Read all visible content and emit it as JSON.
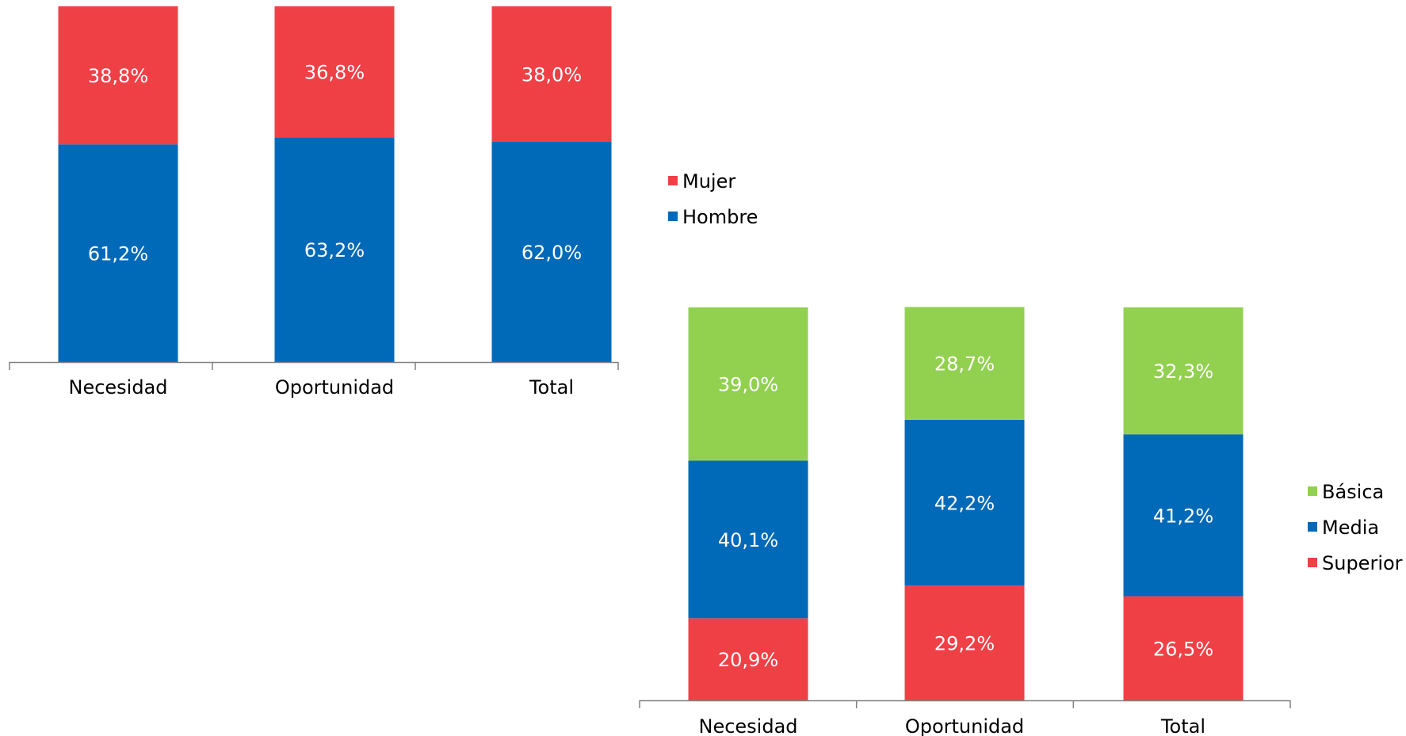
{
  "chart_data": [
    {
      "type": "bar",
      "stacked": true,
      "normalized": true,
      "categories": [
        "Necesidad",
        "Oportunidad",
        "Total"
      ],
      "series": [
        {
          "name": "Hombre",
          "values": [
            61.2,
            63.2,
            62.0
          ],
          "labels": [
            "61,2%",
            "63,2%",
            "62,0%"
          ],
          "color": "#0069B8"
        },
        {
          "name": "Mujer",
          "values": [
            38.8,
            36.8,
            38.0
          ],
          "labels": [
            "38,8%",
            "36,8%",
            "38,0%"
          ],
          "color": "#EF4046"
        }
      ],
      "legend_order": [
        "Mujer",
        "Hombre"
      ],
      "legend_placement": "right",
      "ylim": [
        0,
        100
      ],
      "grid": false
    },
    {
      "type": "bar",
      "stacked": true,
      "normalized": true,
      "categories": [
        "Necesidad",
        "Oportunidad",
        "Total"
      ],
      "series": [
        {
          "name": "Superior",
          "values": [
            20.9,
            29.2,
            26.5
          ],
          "labels": [
            "20,9%",
            "29,2%",
            "26,5%"
          ],
          "color": "#EF4046"
        },
        {
          "name": "Media",
          "values": [
            40.1,
            42.2,
            41.2
          ],
          "labels": [
            "40,1%",
            "42,2%",
            "41,2%"
          ],
          "color": "#0069B8"
        },
        {
          "name": "Básica",
          "values": [
            39.0,
            28.7,
            32.3
          ],
          "labels": [
            "39,0%",
            "28,7%",
            "32,3%"
          ],
          "color": "#92D050"
        }
      ],
      "legend_order": [
        "Básica",
        "Media",
        "Superior"
      ],
      "legend_placement": "right",
      "ylim": [
        0,
        100
      ],
      "grid": false
    }
  ]
}
